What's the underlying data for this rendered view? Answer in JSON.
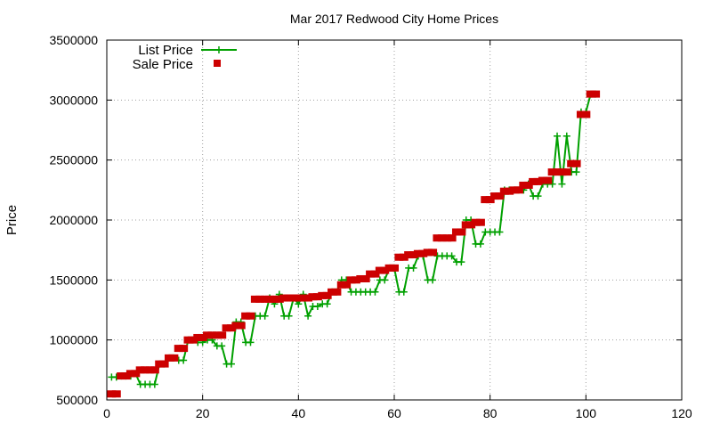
{
  "chart_data": {
    "type": "line",
    "title": "Mar 2017 Redwood City Home Prices",
    "ylabel": "Price",
    "xlabel": "",
    "xlim": [
      0,
      120
    ],
    "ylim": [
      500000,
      3500000
    ],
    "x_ticks": [
      0,
      20,
      40,
      60,
      80,
      100,
      120
    ],
    "y_ticks": [
      500000,
      1000000,
      1500000,
      2000000,
      2500000,
      3000000,
      3500000
    ],
    "x_tick_labels": [
      "0",
      "20",
      "40",
      "60",
      "80",
      "100",
      "120"
    ],
    "y_tick_labels": [
      "500000",
      "1000000",
      "1500000",
      "2000000",
      "2500000",
      "3000000",
      "3500000"
    ],
    "grid": true,
    "legend_position": "top-left",
    "x": [
      1,
      2,
      3,
      4,
      5,
      6,
      7,
      8,
      9,
      10,
      11,
      12,
      13,
      14,
      15,
      16,
      17,
      18,
      19,
      20,
      21,
      22,
      23,
      24,
      25,
      26,
      27,
      28,
      29,
      30,
      31,
      32,
      33,
      34,
      35,
      36,
      37,
      38,
      39,
      40,
      41,
      42,
      43,
      44,
      45,
      46,
      47,
      48,
      49,
      50,
      51,
      52,
      53,
      54,
      55,
      56,
      57,
      58,
      59,
      60,
      61,
      62,
      63,
      64,
      65,
      66,
      67,
      68,
      69,
      70,
      71,
      72,
      73,
      74,
      75,
      76,
      77,
      78,
      79,
      80,
      81,
      82,
      83,
      84,
      85,
      86,
      87,
      88,
      89,
      90,
      91,
      92,
      93,
      94,
      95,
      96,
      97,
      98,
      99,
      100,
      101,
      102
    ],
    "series": [
      {
        "name": "List Price",
        "color": "#00a000",
        "marker": "plus",
        "values": [
          690000,
          690000,
          700000,
          700000,
          700000,
          720000,
          630000,
          630000,
          630000,
          630000,
          800000,
          800000,
          850000,
          850000,
          830000,
          830000,
          1000000,
          1000000,
          980000,
          980000,
          1000000,
          1000000,
          950000,
          950000,
          800000,
          800000,
          1150000,
          1150000,
          980000,
          980000,
          1200000,
          1200000,
          1200000,
          1350000,
          1300000,
          1380000,
          1200000,
          1200000,
          1350000,
          1300000,
          1380000,
          1200000,
          1280000,
          1280000,
          1300000,
          1300000,
          1400000,
          1400000,
          1500000,
          1500000,
          1400000,
          1400000,
          1400000,
          1400000,
          1400000,
          1400000,
          1500000,
          1500000,
          1600000,
          1600000,
          1400000,
          1400000,
          1600000,
          1600000,
          1700000,
          1700000,
          1500000,
          1500000,
          1700000,
          1700000,
          1700000,
          1700000,
          1650000,
          1650000,
          2000000,
          2000000,
          1800000,
          1800000,
          1900000,
          1900000,
          1900000,
          1900000,
          2250000,
          2250000,
          2250000,
          2250000,
          2250000,
          2300000,
          2200000,
          2200000,
          2300000,
          2300000,
          2300000,
          2700000,
          2300000,
          2700000,
          2400000,
          2400000,
          2900000,
          2900000,
          3050000,
          3050000
        ]
      },
      {
        "name": "Sale Price",
        "color": "#cc0000",
        "marker": "square",
        "values": [
          550000,
          550000,
          700000,
          700000,
          720000,
          720000,
          750000,
          750000,
          750000,
          750000,
          800000,
          800000,
          850000,
          850000,
          930000,
          930000,
          1000000,
          1000000,
          1020000,
          1020000,
          1040000,
          1040000,
          1040000,
          1040000,
          1100000,
          1100000,
          1120000,
          1120000,
          1200000,
          1200000,
          1340000,
          1340000,
          1340000,
          1340000,
          1340000,
          1340000,
          1350000,
          1350000,
          1350000,
          1350000,
          1350000,
          1350000,
          1360000,
          1360000,
          1370000,
          1370000,
          1400000,
          1400000,
          1460000,
          1460000,
          1500000,
          1500000,
          1510000,
          1510000,
          1550000,
          1550000,
          1580000,
          1580000,
          1600000,
          1600000,
          1690000,
          1690000,
          1710000,
          1710000,
          1720000,
          1720000,
          1730000,
          1730000,
          1850000,
          1850000,
          1850000,
          1850000,
          1900000,
          1900000,
          1960000,
          1960000,
          1980000,
          1980000,
          2170000,
          2170000,
          2200000,
          2200000,
          2240000,
          2240000,
          2250000,
          2250000,
          2290000,
          2290000,
          2320000,
          2320000,
          2330000,
          2330000,
          2400000,
          2400000,
          2400000,
          2400000,
          2470000,
          2470000,
          2880000,
          2880000,
          3050000,
          3050000
        ]
      }
    ]
  }
}
